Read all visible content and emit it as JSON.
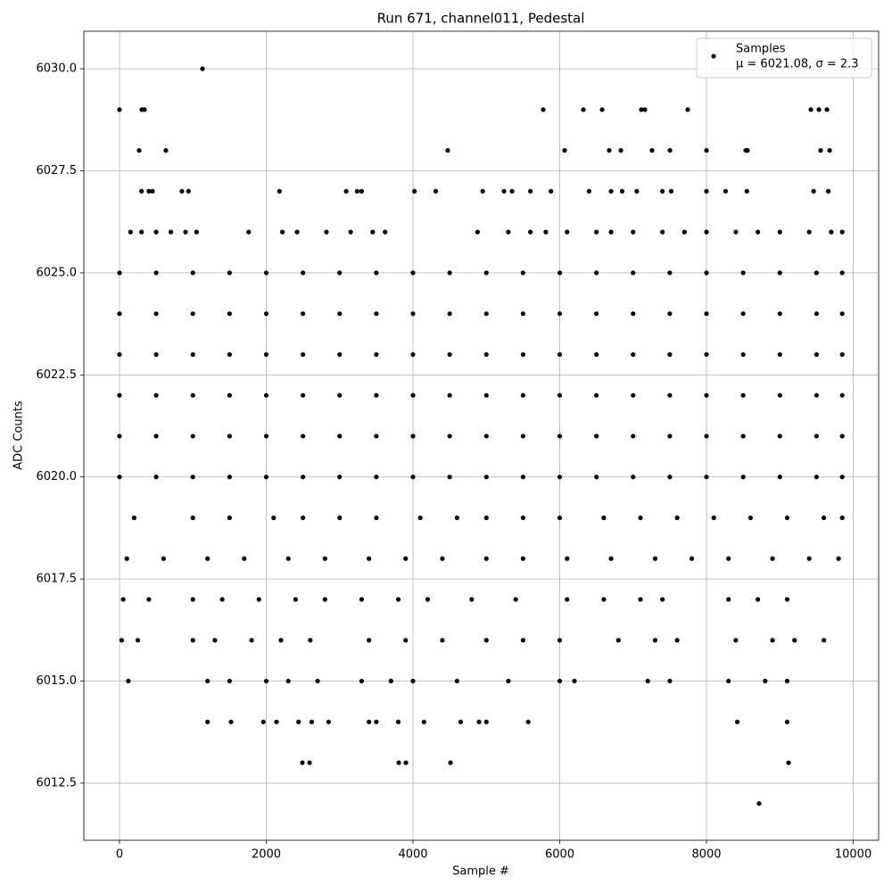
{
  "chart_data": {
    "type": "scatter",
    "title": "Run 671, channel011, Pedestal",
    "xlabel": "Sample #",
    "ylabel": "ADC Counts",
    "xlim": [
      -486,
      10346
    ],
    "ylim": [
      6011.1,
      6030.92
    ],
    "xticks": [
      0,
      2000,
      4000,
      6000,
      8000,
      10000
    ],
    "yticks": [
      {
        "value": 6012.5,
        "label": "6012.5"
      },
      {
        "value": 6015,
        "label": "6015.0"
      },
      {
        "value": 6017.5,
        "label": "6017.5"
      },
      {
        "value": 6020,
        "label": "6020.0"
      },
      {
        "value": 6022.5,
        "label": "6022.5"
      },
      {
        "value": 6025,
        "label": "6025.0"
      },
      {
        "value": 6027.5,
        "label": "6027.5"
      },
      {
        "value": 6030,
        "label": "6030.0"
      }
    ],
    "grid": true,
    "legend": "upper right",
    "series": [
      {
        "name": "Samples",
        "stats": "μ = 6021.08, σ = 2.3",
        "color": "#000000",
        "x": [
          1131,
          8717,
          2492,
          2590,
          3806,
          3903,
          4511,
          9119,
          0,
          304,
          340,
          5775,
          6322,
          6578,
          7112,
          7161,
          7745,
          9422,
          9532,
          9641,
          267,
          632,
          4474,
          6067,
          6675,
          6833,
          7258,
          7502,
          8000,
          8535,
          8559,
          9556,
          9678,
          300,
          400,
          450,
          850,
          940,
          2180,
          3090,
          3240,
          3300,
          4020,
          4310,
          4950,
          5240,
          5350,
          5600,
          5880,
          6400,
          6700,
          6850,
          7050,
          7400,
          7520,
          8000,
          8260,
          8550,
          9460,
          9660,
          150,
          300,
          500,
          700,
          900,
          1050,
          1760,
          2220,
          2420,
          2820,
          3150,
          3450,
          3620,
          4880,
          5300,
          5600,
          5810,
          6100,
          6500,
          6700,
          7000,
          7400,
          7700,
          8000,
          8400,
          8700,
          9000,
          9400,
          9700,
          9850,
          0,
          500,
          1000,
          1500,
          2000,
          2500,
          3000,
          3500,
          4000,
          4500,
          5000,
          5500,
          6000,
          6500,
          7000,
          7500,
          8000,
          8500,
          9000,
          9500,
          9850,
          0,
          500,
          1000,
          1500,
          2000,
          2500,
          3000,
          3500,
          4000,
          4500,
          5000,
          5500,
          6000,
          6500,
          7000,
          7500,
          8000,
          8500,
          9000,
          9500,
          9850,
          0,
          500,
          1000,
          1500,
          2000,
          2500,
          3000,
          3500,
          4000,
          4500,
          5000,
          5500,
          6000,
          6500,
          7000,
          7500,
          8000,
          8500,
          9000,
          9500,
          9850,
          0,
          500,
          1000,
          1500,
          2000,
          2500,
          3000,
          3500,
          4000,
          4500,
          5000,
          5500,
          6000,
          6500,
          7000,
          7500,
          8000,
          8500,
          9000,
          9500,
          9850,
          0,
          500,
          1000,
          1500,
          2000,
          2500,
          3000,
          3500,
          4000,
          4500,
          5000,
          5500,
          6000,
          6500,
          7000,
          7500,
          8000,
          8500,
          9000,
          9500,
          9850,
          0,
          500,
          1000,
          1500,
          2000,
          2500,
          3000,
          3500,
          4000,
          4500,
          5000,
          5500,
          6000,
          6500,
          7000,
          7500,
          8000,
          8500,
          9000,
          9500,
          9850,
          200,
          1000,
          1500,
          2100,
          2500,
          3000,
          3500,
          4100,
          4600,
          5000,
          5500,
          6000,
          6600,
          7100,
          7600,
          8100,
          8600,
          9100,
          9600,
          9850,
          100,
          600,
          1200,
          1700,
          2300,
          2800,
          3400,
          3900,
          4400,
          5000,
          5500,
          6100,
          6700,
          7300,
          7800,
          8300,
          8900,
          9400,
          9800,
          50,
          400,
          1000,
          1400,
          1900,
          2400,
          2800,
          3300,
          3800,
          4200,
          4800,
          5400,
          6100,
          6600,
          7100,
          7400,
          8300,
          8700,
          9100,
          30,
          250,
          1000,
          1300,
          1800,
          2200,
          2600,
          3400,
          3900,
          4400,
          5000,
          5500,
          6000,
          6800,
          7300,
          7600,
          8400,
          8900,
          9200,
          9600,
          120,
          1200,
          1500,
          2000,
          2300,
          2700,
          3300,
          3700,
          4000,
          4600,
          5300,
          6000,
          6200,
          7200,
          7500,
          8300,
          8800,
          9100,
          1200,
          1520,
          1960,
          2140,
          2440,
          2620,
          2850,
          3400,
          3500,
          3800,
          4150,
          4650,
          4900,
          5000,
          5570,
          8420,
          9100
        ],
        "values": [
          6030,
          6012,
          6013,
          6013,
          6013,
          6013,
          6013,
          6013,
          6029,
          6029,
          6029,
          6029,
          6029,
          6029,
          6029,
          6029,
          6029,
          6029,
          6029,
          6029,
          6028,
          6028,
          6028,
          6028,
          6028,
          6028,
          6028,
          6028,
          6028,
          6028,
          6028,
          6028,
          6028,
          6027,
          6027,
          6027,
          6027,
          6027,
          6027,
          6027,
          6027,
          6027,
          6027,
          6027,
          6027,
          6027,
          6027,
          6027,
          6027,
          6027,
          6027,
          6027,
          6027,
          6027,
          6027,
          6027,
          6027,
          6027,
          6027,
          6027,
          6026,
          6026,
          6026,
          6026,
          6026,
          6026,
          6026,
          6026,
          6026,
          6026,
          6026,
          6026,
          6026,
          6026,
          6026,
          6026,
          6026,
          6026,
          6026,
          6026,
          6026,
          6026,
          6026,
          6026,
          6026,
          6026,
          6026,
          6026,
          6026,
          6026,
          6025,
          6025,
          6025,
          6025,
          6025,
          6025,
          6025,
          6025,
          6025,
          6025,
          6025,
          6025,
          6025,
          6025,
          6025,
          6025,
          6025,
          6025,
          6025,
          6025,
          6025,
          6024,
          6024,
          6024,
          6024,
          6024,
          6024,
          6024,
          6024,
          6024,
          6024,
          6024,
          6024,
          6024,
          6024,
          6024,
          6024,
          6024,
          6024,
          6024,
          6024,
          6024,
          6023,
          6023,
          6023,
          6023,
          6023,
          6023,
          6023,
          6023,
          6023,
          6023,
          6023,
          6023,
          6023,
          6023,
          6023,
          6023,
          6023,
          6023,
          6023,
          6023,
          6023,
          6022,
          6022,
          6022,
          6022,
          6022,
          6022,
          6022,
          6022,
          6022,
          6022,
          6022,
          6022,
          6022,
          6022,
          6022,
          6022,
          6022,
          6022,
          6022,
          6022,
          6022,
          6021,
          6021,
          6021,
          6021,
          6021,
          6021,
          6021,
          6021,
          6021,
          6021,
          6021,
          6021,
          6021,
          6021,
          6021,
          6021,
          6021,
          6021,
          6021,
          6021,
          6021,
          6020,
          6020,
          6020,
          6020,
          6020,
          6020,
          6020,
          6020,
          6020,
          6020,
          6020,
          6020,
          6020,
          6020,
          6020,
          6020,
          6020,
          6020,
          6020,
          6020,
          6020,
          6019,
          6019,
          6019,
          6019,
          6019,
          6019,
          6019,
          6019,
          6019,
          6019,
          6019,
          6019,
          6019,
          6019,
          6019,
          6019,
          6019,
          6019,
          6019,
          6019,
          6018,
          6018,
          6018,
          6018,
          6018,
          6018,
          6018,
          6018,
          6018,
          6018,
          6018,
          6018,
          6018,
          6018,
          6018,
          6018,
          6018,
          6018,
          6018,
          6017,
          6017,
          6017,
          6017,
          6017,
          6017,
          6017,
          6017,
          6017,
          6017,
          6017,
          6017,
          6017,
          6017,
          6017,
          6017,
          6017,
          6017,
          6017,
          6016,
          6016,
          6016,
          6016,
          6016,
          6016,
          6016,
          6016,
          6016,
          6016,
          6016,
          6016,
          6016,
          6016,
          6016,
          6016,
          6016,
          6016,
          6016,
          6016,
          6015,
          6015,
          6015,
          6015,
          6015,
          6015,
          6015,
          6015,
          6015,
          6015,
          6015,
          6015,
          6015,
          6015,
          6015,
          6015,
          6015,
          6015,
          6014,
          6014,
          6014,
          6014,
          6014,
          6014,
          6014,
          6014,
          6014,
          6014,
          6014,
          6014,
          6014,
          6014,
          6014,
          6014,
          6014
        ]
      }
    ]
  }
}
